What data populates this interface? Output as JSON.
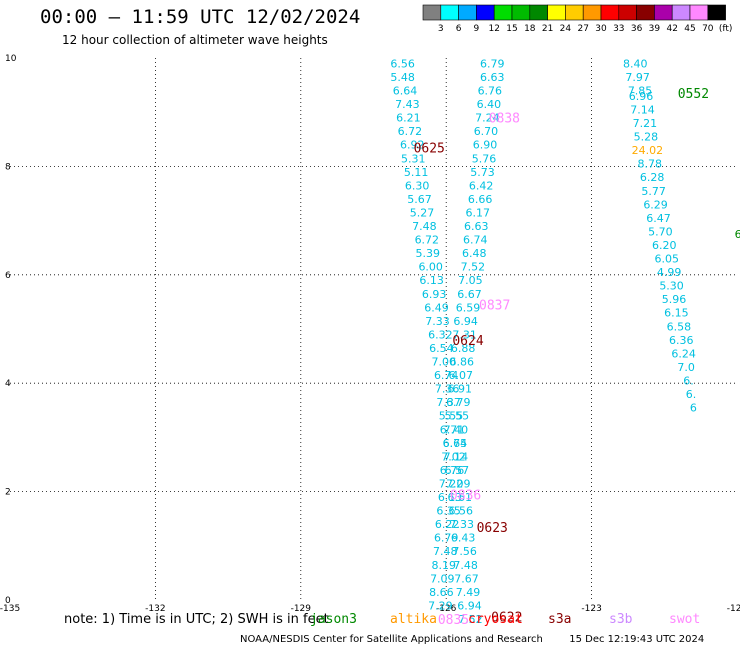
{
  "header": {
    "title": "00:00 – 11:59 UTC 12/02/2024",
    "subtitle": "12 hour collection of altimeter wave heights"
  },
  "colorbar": {
    "labels": [
      "3",
      "6",
      "9",
      "12",
      "15",
      "18",
      "21",
      "24",
      "27",
      "30",
      "33",
      "36",
      "39",
      "42",
      "45",
      "70",
      "(ft)"
    ],
    "colors": [
      "#808080",
      "#00ffff",
      "#00aaff",
      "#0000ff",
      "#00dd00",
      "#00bb00",
      "#008800",
      "#ffff00",
      "#ffcc00",
      "#ff9900",
      "#ff0000",
      "#cc0000",
      "#880000",
      "#aa00aa",
      "#cc88ff",
      "#ff88ff",
      "#000000"
    ]
  },
  "map": {
    "x_ticks": [
      "-135",
      "-132",
      "-129",
      "-126",
      "-123",
      "-120"
    ],
    "y_ticks": [
      "0",
      "2",
      "4",
      "6",
      "8",
      "10"
    ],
    "x_range": [
      -135,
      -120
    ],
    "y_range": [
      0,
      10
    ]
  },
  "tracks": [
    {
      "color": "#00c0e0",
      "time_labels": [],
      "points": [
        [
          -126.9,
          9.9,
          "6.56"
        ],
        [
          -126.9,
          9.65,
          "5.48"
        ],
        [
          -126.85,
          9.4,
          "6.64"
        ],
        [
          -126.8,
          9.15,
          "7.43"
        ],
        [
          -126.78,
          8.9,
          "6.21"
        ],
        [
          -126.75,
          8.65,
          "6.72"
        ],
        [
          -126.7,
          8.4,
          "6.92"
        ],
        [
          -126.68,
          8.15,
          "5.31"
        ],
        [
          -126.62,
          7.9,
          "5.11"
        ],
        [
          -126.6,
          7.65,
          "6.30"
        ],
        [
          -126.55,
          7.4,
          "5.67"
        ],
        [
          -126.5,
          7.15,
          "5.27"
        ],
        [
          -126.45,
          6.9,
          "7.48"
        ],
        [
          -126.4,
          6.65,
          "6.72"
        ],
        [
          -126.38,
          6.4,
          "5.39"
        ],
        [
          -126.32,
          6.15,
          "6.00"
        ],
        [
          -126.3,
          5.9,
          "6.13"
        ],
        [
          -126.25,
          5.65,
          "6.93"
        ],
        [
          -126.2,
          5.4,
          "6.49"
        ],
        [
          -126.18,
          5.15,
          "7.33"
        ],
        [
          -126.12,
          4.9,
          "6.32"
        ],
        [
          -126.1,
          4.65,
          "6.54"
        ],
        [
          -126.05,
          4.4,
          "7.00"
        ],
        [
          -126.0,
          4.15,
          "6.74"
        ],
        [
          -125.98,
          3.9,
          "7.36"
        ],
        [
          -125.95,
          3.65,
          "7.37"
        ],
        [
          -125.9,
          3.4,
          "5.55"
        ],
        [
          -125.88,
          3.15,
          "6.71"
        ],
        [
          -125.82,
          2.9,
          "6.65"
        ],
        [
          -125.8,
          2.65,
          "7.14"
        ],
        [
          -125.78,
          2.4,
          "6.57"
        ],
        [
          -125.75,
          2.15,
          "7.09"
        ],
        [
          -125.72,
          1.9,
          "6.61"
        ],
        [
          -125.7,
          1.65,
          "6.56"
        ],
        [
          -125.68,
          1.4,
          "7.33"
        ],
        [
          -125.65,
          1.15,
          "6.43"
        ],
        [
          -125.62,
          0.9,
          "7.56"
        ],
        [
          -125.6,
          0.65,
          "7.48"
        ],
        [
          -125.58,
          0.4,
          "7.67"
        ],
        [
          -125.55,
          0.15,
          "7.49"
        ],
        [
          -125.52,
          -0.1,
          "6.94"
        ],
        [
          -125.5,
          -0.35,
          "7.52"
        ]
      ]
    },
    {
      "color": "#00c0e0",
      "time_labels": [],
      "points": [
        [
          -125.05,
          9.9,
          "6.79"
        ],
        [
          -125.05,
          9.65,
          "6.63"
        ],
        [
          -125.1,
          9.4,
          "6.76"
        ],
        [
          -125.12,
          9.15,
          "6.40"
        ],
        [
          -125.15,
          8.9,
          "7.24"
        ],
        [
          -125.18,
          8.65,
          "6.70"
        ],
        [
          -125.2,
          8.4,
          "6.90"
        ],
        [
          -125.22,
          8.15,
          "5.76"
        ],
        [
          -125.25,
          7.9,
          "5.73"
        ],
        [
          -125.28,
          7.65,
          "6.42"
        ],
        [
          -125.3,
          7.4,
          "6.66"
        ],
        [
          -125.35,
          7.15,
          "6.17"
        ],
        [
          -125.38,
          6.9,
          "6.63"
        ],
        [
          -125.4,
          6.65,
          "6.74"
        ],
        [
          -125.42,
          6.4,
          "6.48"
        ],
        [
          -125.45,
          6.15,
          "7.52"
        ],
        [
          -125.5,
          5.9,
          "7.05"
        ],
        [
          -125.52,
          5.65,
          "6.67"
        ],
        [
          -125.55,
          5.4,
          "6.59"
        ],
        [
          -125.6,
          5.15,
          "6.94"
        ],
        [
          -125.62,
          4.9,
          "7.31"
        ],
        [
          -125.65,
          4.65,
          "6.88"
        ],
        [
          -125.68,
          4.4,
          "6.86"
        ],
        [
          -125.7,
          4.15,
          "6.07"
        ],
        [
          -125.72,
          3.9,
          "6.91"
        ],
        [
          -125.75,
          3.65,
          "6.79"
        ],
        [
          -125.78,
          3.4,
          "5.55"
        ],
        [
          -125.8,
          3.15,
          "7.40"
        ],
        [
          -125.82,
          2.9,
          "6.74"
        ],
        [
          -125.85,
          2.65,
          "7.02"
        ],
        [
          -125.88,
          2.4,
          "6.76"
        ],
        [
          -125.9,
          2.15,
          "7.22"
        ],
        [
          -125.92,
          1.9,
          "6.13"
        ],
        [
          -125.95,
          1.65,
          "6.35"
        ],
        [
          -125.98,
          1.4,
          "6.22"
        ],
        [
          -126.0,
          1.15,
          "6.79"
        ],
        [
          -126.02,
          0.9,
          "7.48"
        ],
        [
          -126.05,
          0.65,
          "8.19"
        ],
        [
          -126.08,
          0.4,
          "7.09"
        ],
        [
          -126.1,
          0.15,
          "8.66"
        ],
        [
          -126.12,
          -0.1,
          "7.29"
        ]
      ]
    },
    {
      "color": "#00c0e0",
      "time_labels": [],
      "points": [
        [
          -122.1,
          9.9,
          "8.40"
        ],
        [
          -122.05,
          9.65,
          "7.97"
        ],
        [
          -122.0,
          9.4,
          "7.85"
        ],
        [
          -121.98,
          9.3,
          "6.96"
        ],
        [
          -121.95,
          9.05,
          "7.14"
        ],
        [
          -121.9,
          8.8,
          "7.21"
        ],
        [
          -121.88,
          8.55,
          "5.28"
        ],
        [
          -121.85,
          8.3,
          "24.02"
        ],
        [
          -121.8,
          8.05,
          "8.78"
        ],
        [
          -121.75,
          7.8,
          "6.28"
        ],
        [
          -121.72,
          7.55,
          "5.77"
        ],
        [
          -121.68,
          7.3,
          "6.29"
        ],
        [
          -121.62,
          7.05,
          "6.47"
        ],
        [
          -121.58,
          6.8,
          "5.70"
        ],
        [
          -121.5,
          6.55,
          "6.20"
        ],
        [
          -121.45,
          6.3,
          "6.05"
        ],
        [
          -121.4,
          6.05,
          "4.99"
        ],
        [
          -121.35,
          5.8,
          "5.30"
        ],
        [
          -121.3,
          5.55,
          "5.96"
        ],
        [
          -121.25,
          5.3,
          "6.15"
        ],
        [
          -121.2,
          5.05,
          "6.58"
        ],
        [
          -121.15,
          4.8,
          "6.36"
        ],
        [
          -121.1,
          4.55,
          "6.24"
        ],
        [
          -121.05,
          4.3,
          "7.0"
        ],
        [
          -121.0,
          4.05,
          "6."
        ],
        [
          -120.95,
          3.8,
          "6."
        ],
        [
          -120.9,
          3.55,
          "6"
        ]
      ]
    }
  ],
  "time_labels": [
    {
      "text": "0552",
      "color": "#008800",
      "lon": -120.9,
      "lat": 9.35
    },
    {
      "text": "0838",
      "color": "#ff88ff",
      "lon": -124.8,
      "lat": 8.9
    },
    {
      "text": "0625",
      "color": "#880000",
      "lon": -126.35,
      "lat": 8.35
    },
    {
      "text": "0837",
      "color": "#ff88ff",
      "lon": -125.0,
      "lat": 5.45
    },
    {
      "text": "0624",
      "color": "#880000",
      "lon": -125.55,
      "lat": 4.8
    },
    {
      "text": "0836",
      "color": "#ff88ff",
      "lon": -125.6,
      "lat": 1.95
    },
    {
      "text": "0623",
      "color": "#880000",
      "lon": -125.05,
      "lat": 1.35
    },
    {
      "text": "0835",
      "color": "#ff88ff",
      "lon": -125.85,
      "lat": -0.35
    },
    {
      "text": "0622",
      "color": "#880000",
      "lon": -124.75,
      "lat": -0.3
    }
  ],
  "edge_mark": {
    "text": "6",
    "color": "#008800",
    "lon": -120.05,
    "lat": 6.75
  },
  "legend": {
    "note": "note:  1) Time is in UTC;  2) SWH is in feet",
    "items": [
      {
        "text": "jason3",
        "color": "#008800"
      },
      {
        "text": "altika",
        "color": "#ff9900"
      },
      {
        "text": "cryosat",
        "color": "#ff0000"
      },
      {
        "text": "s3a",
        "color": "#880000"
      },
      {
        "text": "s3b",
        "color": "#cc88ff"
      },
      {
        "text": "swot",
        "color": "#ff88ff"
      }
    ]
  },
  "footer": {
    "credit": "NOAA/NESDIS Center for Satellite Applications and Research",
    "generated": "15 Dec 12:19:43 UTC 2024"
  }
}
